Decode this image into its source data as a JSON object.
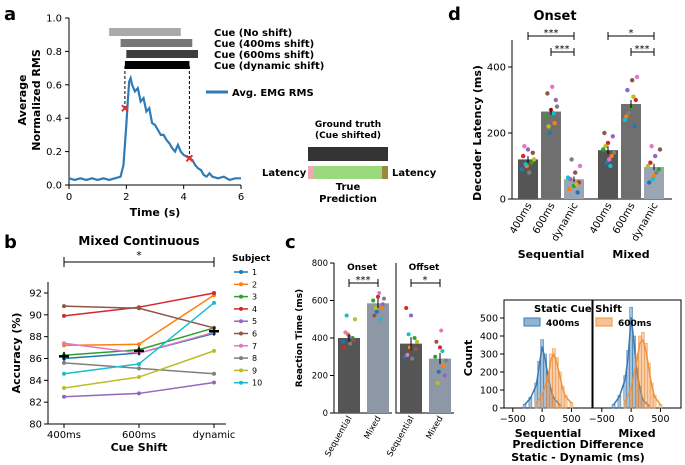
{
  "panel_letters": {
    "a": "a",
    "b": "b",
    "c": "c",
    "d": "d"
  },
  "colors": {
    "emg": "#2f7bb8",
    "cue_marker": "#e03030",
    "cue_no_shift": "#aaaaaa",
    "cue_400": "#777777",
    "cue_600": "#3d3d3d",
    "cue_dynamic": "#000000",
    "bar_sequential": "#555555",
    "bar_mixed": "#8d97a5",
    "bar_dynamic": "#9ba6b5",
    "hist_400": "#3a78b0",
    "hist_600": "#f0913d",
    "gt_box": "#333333",
    "gt_latency_left": "#f2a7b4",
    "gt_pred": "#9ada7f",
    "gt_latency_right": "#9a8a3c"
  },
  "panel_a": {
    "legend_labels": [
      "Cue (No shift)",
      "Cue (400ms shift)",
      "Cue (600ms shift)",
      "Cue (dynamic shift)"
    ],
    "emg_label": "Avg. EMG RMS",
    "gt_title_1": "Ground truth",
    "gt_title_2": "(Cue shifted)",
    "gt_latency_left": "Latency",
    "gt_latency_right": "Latency",
    "gt_pred_1": "True",
    "gt_pred_2": "Prediction"
  },
  "panel_b": {
    "subject_title": "Subject",
    "significance": "*"
  },
  "panel_c": {
    "onset_sig": "***",
    "offset_sig": "*"
  },
  "panel_d": {
    "sig_sequential_top": "***",
    "sig_sequential_low": "***",
    "sig_mixed_top": "*",
    "sig_mixed_low": "***",
    "group_labels": [
      "Sequential",
      "Mixed"
    ],
    "hist_title": "Static Cue Shift",
    "hist_legend": [
      "400ms",
      "600ms"
    ]
  },
  "chart_data": [
    {
      "panel": "a",
      "type": "line",
      "title": "",
      "xlabel": "Time (s)",
      "ylabel": "Average Normalized RMS",
      "xlim": [
        0,
        6
      ],
      "ylim": [
        0,
        1.0
      ],
      "xticks": [
        "0",
        "2",
        "4",
        "6"
      ],
      "yticks": [
        "0.0",
        "0.2",
        "0.4",
        "0.6",
        "0.8",
        "1.0"
      ],
      "series": [
        {
          "name": "Avg. EMG RMS",
          "x": [
            0,
            0.2,
            0.4,
            0.6,
            0.8,
            1.0,
            1.2,
            1.4,
            1.6,
            1.8,
            1.9,
            2.0,
            2.05,
            2.1,
            2.15,
            2.2,
            2.3,
            2.4,
            2.5,
            2.6,
            2.7,
            2.8,
            2.9,
            3.0,
            3.1,
            3.2,
            3.3,
            3.4,
            3.5,
            3.6,
            3.7,
            3.8,
            3.9,
            4.0,
            4.1,
            4.2,
            4.3,
            4.4,
            4.5,
            4.6,
            4.7,
            4.8,
            4.9,
            5.0,
            5.2,
            5.4,
            5.6,
            5.8,
            6.0
          ],
          "y": [
            0.04,
            0.03,
            0.04,
            0.03,
            0.04,
            0.03,
            0.04,
            0.03,
            0.04,
            0.05,
            0.12,
            0.36,
            0.5,
            0.62,
            0.64,
            0.6,
            0.56,
            0.58,
            0.5,
            0.52,
            0.44,
            0.46,
            0.37,
            0.36,
            0.33,
            0.3,
            0.3,
            0.27,
            0.25,
            0.22,
            0.2,
            0.24,
            0.2,
            0.18,
            0.17,
            0.16,
            0.15,
            0.12,
            0.1,
            0.09,
            0.06,
            0.05,
            0.07,
            0.05,
            0.04,
            0.05,
            0.03,
            0.04,
            0.04
          ]
        }
      ],
      "cue_bars": [
        {
          "name": "Cue (No shift)",
          "start": 1.4,
          "end": 3.9
        },
        {
          "name": "Cue (400ms shift)",
          "start": 1.8,
          "end": 4.3
        },
        {
          "name": "Cue (600ms shift)",
          "start": 2.0,
          "end": 4.5
        },
        {
          "name": "Cue (dynamic shift)",
          "start": 1.95,
          "end": 4.2
        }
      ],
      "markers": [
        {
          "x": 1.95,
          "y": 0.46
        },
        {
          "x": 4.2,
          "y": 0.16
        }
      ]
    },
    {
      "panel": "b",
      "type": "line",
      "title": "Mixed Continuous",
      "xlabel": "Cue Shift",
      "ylabel": "Accuracy (%)",
      "categories": [
        "400ms",
        "600ms",
        "dynamic"
      ],
      "ylim": [
        80,
        92
      ],
      "yticks": [
        "80",
        "82",
        "84",
        "86",
        "88",
        "90",
        "92"
      ],
      "series": [
        {
          "name": "1",
          "color": "#1f77b4",
          "values": [
            86.0,
            86.5,
            88.3
          ]
        },
        {
          "name": "2",
          "color": "#ff7f0e",
          "values": [
            87.2,
            87.3,
            91.8
          ]
        },
        {
          "name": "3",
          "color": "#2ca02c",
          "values": [
            86.3,
            86.8,
            88.8
          ]
        },
        {
          "name": "4",
          "color": "#d62728",
          "values": [
            89.9,
            90.7,
            92.0
          ]
        },
        {
          "name": "5",
          "color": "#9467bd",
          "values": [
            82.5,
            82.8,
            83.8
          ]
        },
        {
          "name": "6",
          "color": "#8c564b",
          "values": [
            90.8,
            90.6,
            88.8
          ]
        },
        {
          "name": "7",
          "color": "#e377c2",
          "values": [
            87.4,
            86.5,
            88.4
          ]
        },
        {
          "name": "8",
          "color": "#7f7f7f",
          "values": [
            85.6,
            85.1,
            84.6
          ]
        },
        {
          "name": "9",
          "color": "#bcbd22",
          "values": [
            83.3,
            84.3,
            86.7
          ]
        },
        {
          "name": "10",
          "color": "#17becf",
          "values": [
            84.6,
            85.5,
            91.1
          ]
        }
      ],
      "mean": {
        "values": [
          86.2,
          86.7,
          88.5
        ],
        "error": [
          0.4,
          0.4,
          0.4
        ]
      }
    },
    {
      "panel": "c",
      "type": "bar",
      "ylabel": "Reaction Time (ms)",
      "ylim": [
        0,
        800
      ],
      "yticks": [
        "0",
        "200",
        "400",
        "600",
        "800"
      ],
      "subplots": [
        {
          "title": "Onset",
          "categories": [
            "Sequential",
            "Mixed"
          ],
          "values": [
            400,
            585
          ],
          "error": [
            20,
            25
          ],
          "points": [
            [
              380,
              420,
              400,
              350,
              410,
              390,
              430,
              370,
              500,
              520
            ],
            [
              540,
              560,
              600,
              620,
              580,
              520,
              640,
              610,
              560,
              500
            ]
          ]
        },
        {
          "title": "Offset",
          "categories": [
            "Sequential",
            "Mixed"
          ],
          "values": [
            370,
            290
          ],
          "error": [
            35,
            30
          ],
          "points": [
            [
              300,
              350,
              400,
              560,
              520,
              340,
              310,
              290,
              380,
              420
            ],
            [
              220,
              250,
              300,
              350,
              200,
              380,
              440,
              280,
              160,
              330
            ]
          ]
        }
      ]
    },
    {
      "panel": "d-top",
      "type": "bar",
      "title": "Onset",
      "ylabel": "Decoder Latency (ms)",
      "ylim": [
        0,
        400
      ],
      "yticks": [
        "0",
        "200",
        "400"
      ],
      "groups": [
        "Sequential",
        "Mixed"
      ],
      "categories": [
        "400ms",
        "600ms",
        "dynamic"
      ],
      "series": [
        {
          "name": "Sequential",
          "values": [
            120,
            265,
            60
          ],
          "error": [
            10,
            10,
            8
          ],
          "points": [
            [
              90,
              100,
              110,
              130,
              150,
              140,
              160,
              80,
              120,
              105
            ],
            [
              200,
              230,
              250,
              270,
              300,
              320,
              340,
              280,
              220,
              260
            ],
            [
              20,
              30,
              40,
              50,
              60,
              80,
              100,
              120,
              45,
              65
            ]
          ]
        },
        {
          "name": "Mixed",
          "values": [
            148,
            288,
            97
          ],
          "error": [
            12,
            12,
            10
          ],
          "points": [
            [
              110,
              130,
              150,
              170,
              190,
              200,
              120,
              140,
              160,
              100
            ],
            [
              220,
              250,
              280,
              300,
              330,
              360,
              370,
              260,
              310,
              240
            ],
            [
              50,
              70,
              90,
              110,
              130,
              150,
              160,
              80,
              100,
              60
            ]
          ]
        }
      ]
    },
    {
      "panel": "d-bottom",
      "type": "histogram",
      "title": "Static Cue Shift",
      "xlabel": "Prediction Difference Static - Dynamic (ms)",
      "ylabel": "Count",
      "ylim": [
        0,
        600
      ],
      "yticks": [
        "0",
        "100",
        "200",
        "300",
        "400",
        "500"
      ],
      "subplots": [
        {
          "label": "Sequential",
          "xticks": [
            "−500",
            "0",
            "500"
          ],
          "xlim": [
            -650,
            850
          ],
          "series": [
            {
              "name": "400ms",
              "bins": [
                -300,
                -200,
                -100,
                -50,
                0,
                50,
                100,
                150,
                200,
                300
              ],
              "counts": [
                20,
                60,
                140,
                260,
                380,
                300,
                200,
                110,
                60,
                20
              ]
            },
            {
              "name": "600ms",
              "bins": [
                -100,
                0,
                100,
                150,
                200,
                250,
                300,
                350,
                400,
                500
              ],
              "counts": [
                30,
                80,
                180,
                300,
                330,
                280,
                200,
                120,
                70,
                30
              ]
            }
          ]
        },
        {
          "label": "Mixed",
          "xticks": [
            "−500",
            "0",
            "500"
          ],
          "xlim": [
            -650,
            850
          ],
          "series": [
            {
              "name": "400ms",
              "bins": [
                -300,
                -200,
                -100,
                -50,
                0,
                50,
                100,
                150,
                200,
                300
              ],
              "counts": [
                20,
                70,
                180,
                320,
                560,
                400,
                220,
                120,
                50,
                15
              ]
            },
            {
              "name": "600ms",
              "bins": [
                -100,
                0,
                100,
                150,
                200,
                250,
                300,
                350,
                400,
                500
              ],
              "counts": [
                40,
                120,
                300,
                400,
                420,
                360,
                250,
                140,
                70,
                20
              ]
            }
          ]
        }
      ]
    }
  ]
}
